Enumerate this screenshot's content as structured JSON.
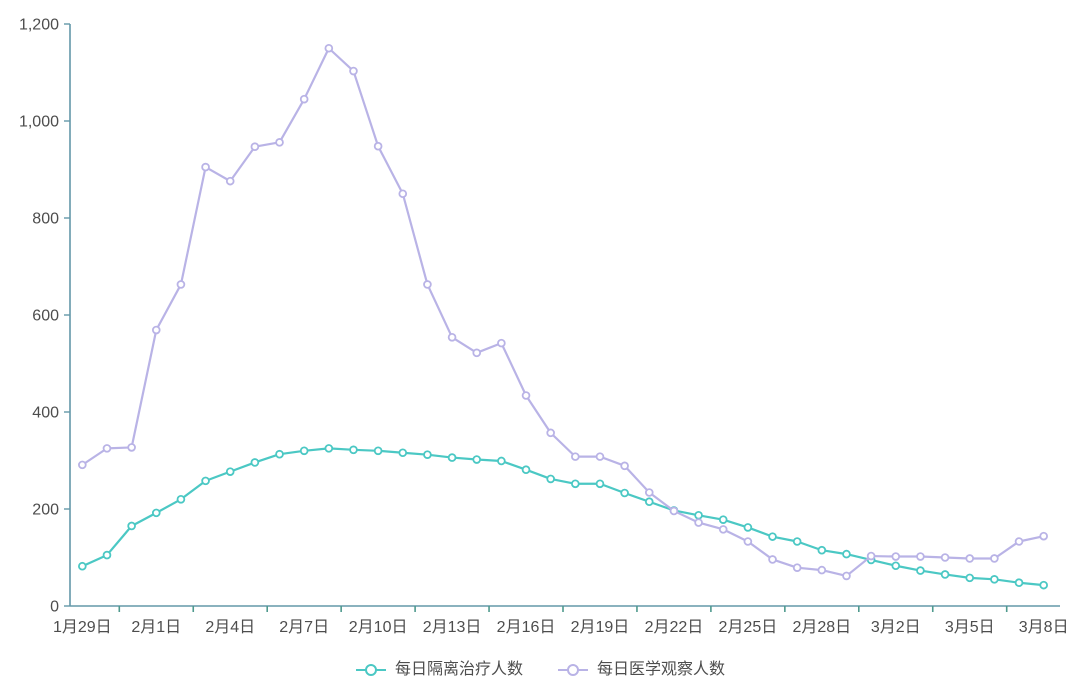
{
  "chart_data": {
    "type": "line",
    "x": [
      "1月29日",
      "1月30日",
      "1月31日",
      "2月1日",
      "2月2日",
      "2月3日",
      "2月4日",
      "2月5日",
      "2月6日",
      "2月7日",
      "2月8日",
      "2月9日",
      "2月10日",
      "2月11日",
      "2月12日",
      "2月13日",
      "2月14日",
      "2月15日",
      "2月16日",
      "2月17日",
      "2月18日",
      "2月19日",
      "2月20日",
      "2月21日",
      "2月22日",
      "2月23日",
      "2月24日",
      "2月25日",
      "2月26日",
      "2月27日",
      "2月28日",
      "2月29日",
      "3月1日",
      "3月2日",
      "3月3日",
      "3月4日",
      "3月5日",
      "3月6日",
      "3月7日",
      "3月8日"
    ],
    "x_label_indices": [
      0,
      3,
      6,
      9,
      12,
      15,
      18,
      21,
      24,
      27,
      30,
      33,
      36,
      39
    ],
    "series": [
      {
        "name": "每日隔离治疗人数",
        "color": "#4bc8c4",
        "values": [
          82,
          105,
          165,
          192,
          220,
          258,
          277,
          296,
          313,
          320,
          325,
          322,
          320,
          316,
          312,
          306,
          302,
          299,
          281,
          262,
          252,
          252,
          233,
          215,
          197,
          187,
          178,
          162,
          143,
          133,
          115,
          107,
          95,
          83,
          73,
          65,
          58,
          55,
          48,
          43
        ]
      },
      {
        "name": "每日医学观察人数",
        "color": "#b9b3e6",
        "values": [
          291,
          325,
          327,
          569,
          663,
          905,
          876,
          947,
          956,
          1045,
          1150,
          1103,
          948,
          850,
          663,
          554,
          522,
          542,
          434,
          357,
          308,
          308,
          289,
          234,
          196,
          172,
          158,
          133,
          96,
          79,
          74,
          62,
          103,
          102,
          102,
          100,
          98,
          98,
          133,
          144
        ]
      }
    ],
    "title": "",
    "xlabel": "",
    "ylabel": "",
    "ylim": [
      0,
      1200
    ],
    "y_ticks": {
      "values": [
        0,
        200,
        400,
        600,
        800,
        1000,
        1200
      ],
      "labels": [
        "0",
        "200",
        "400",
        "600",
        "800",
        "1,000",
        "1,200"
      ]
    },
    "grid": false,
    "legend_position": "bottom",
    "marker": "hollow-circle",
    "colors": {
      "axis_line": "#6398a9",
      "axis_tick": "#4f9a8e",
      "label": "#4d4d4d",
      "background": "#ffffff"
    }
  }
}
